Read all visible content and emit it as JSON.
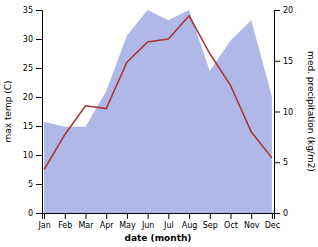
{
  "chart_data": {
    "type": "line",
    "xlabel": "date (month)",
    "ylabel": "max temp (C)",
    "y2label": "med. precipitation (kg/m2)",
    "categories": [
      "Jan",
      "Feb",
      "Mar",
      "Apr",
      "May",
      "Jun",
      "Jul",
      "Aug",
      "Sep",
      "Oct",
      "Nov",
      "Dec"
    ],
    "series": [
      {
        "type": "area",
        "color": "#b0b8e8",
        "axis": "y2",
        "values": [
          9,
          8.5,
          8.5,
          12,
          17.5,
          20,
          19,
          20,
          14,
          17,
          19,
          11.5
        ]
      },
      {
        "type": "line",
        "color": "#aa3333",
        "values": [
          7.5,
          13.5,
          18.5,
          18,
          26,
          29.5,
          30,
          34,
          27.5,
          22,
          14,
          9.5
        ]
      }
    ],
    "ylim": [
      0,
      35
    ],
    "yticks": [
      0,
      5,
      10,
      15,
      20,
      25,
      30,
      35
    ],
    "y2lim": [
      0,
      20
    ],
    "y2ticks": [
      0,
      5,
      10,
      15,
      20
    ]
  }
}
